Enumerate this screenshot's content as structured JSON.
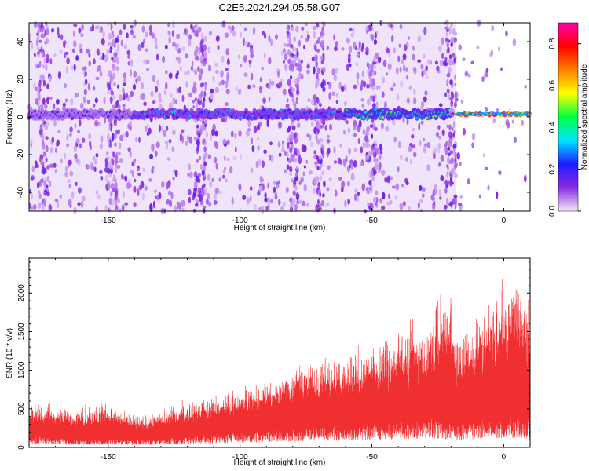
{
  "page": {
    "title": "C2E5.2024.294.05.58.G07"
  },
  "chart_data": [
    {
      "type": "heatmap",
      "xlabel": "Height of straight line (km)",
      "ylabel": "Frequency (Hz)",
      "xlim": [
        -180,
        10
      ],
      "ylim": [
        -50,
        50
      ],
      "x_ticks": [
        "-150",
        "-100",
        "-50",
        "0"
      ],
      "y_ticks": [
        "-40",
        "-20",
        "0",
        "20",
        "40"
      ],
      "colorbar": {
        "label": "Normalized spectral amplitude",
        "range": [
          0,
          0.9
        ],
        "ticks": [
          "0.0",
          "0.2",
          "0.4",
          "0.6",
          "0.8"
        ],
        "colors": [
          "#f3e9fb",
          "#8a2be2",
          "#1d1dff",
          "#00e5ff",
          "#00ff40",
          "#ffff00",
          "#ff8000",
          "#ff0000",
          "#ff00aa"
        ]
      },
      "ridge_center_hz": 1.5,
      "ridge_segments": [
        {
          "x_range": [
            -180,
            -140
          ],
          "amplitude": 0.2
        },
        {
          "x_range": [
            -140,
            -60
          ],
          "amplitude": 0.3
        },
        {
          "x_range": [
            -60,
            -20
          ],
          "amplitude": 0.45
        },
        {
          "x_range": [
            -18,
            10
          ],
          "amplitude": 0.85
        }
      ],
      "vertical_streaks_km": [
        -175,
        -148,
        -115,
        -80,
        -70,
        -50,
        -20
      ]
    },
    {
      "type": "area",
      "xlabel": "Height of straight line (km)",
      "ylabel": "SNR (10 * v/v)",
      "xlim": [
        -180,
        10
      ],
      "ylim": [
        0,
        2450
      ],
      "x_ticks": [
        "-150",
        "-100",
        "-50",
        "0"
      ],
      "y_ticks": [
        "0",
        "500",
        "1000",
        "1500",
        "2000"
      ],
      "series_color": "#f03030",
      "envelope": {
        "x": [
          -180,
          -160,
          -150,
          -140,
          -130,
          -120,
          -110,
          -100,
          -90,
          -80,
          -70,
          -60,
          -50,
          -40,
          -30,
          -20,
          -18,
          -10,
          0,
          5,
          10
        ],
        "y_max": [
          600,
          550,
          650,
          450,
          500,
          650,
          700,
          800,
          950,
          1100,
          1250,
          1300,
          1400,
          1650,
          1700,
          2250,
          1600,
          1800,
          2300,
          2350,
          2000
        ],
        "y_min": [
          150,
          100,
          120,
          100,
          120,
          150,
          180,
          200,
          230,
          260,
          280,
          300,
          320,
          350,
          380,
          350,
          300,
          350,
          400,
          400,
          380
        ]
      }
    }
  ]
}
